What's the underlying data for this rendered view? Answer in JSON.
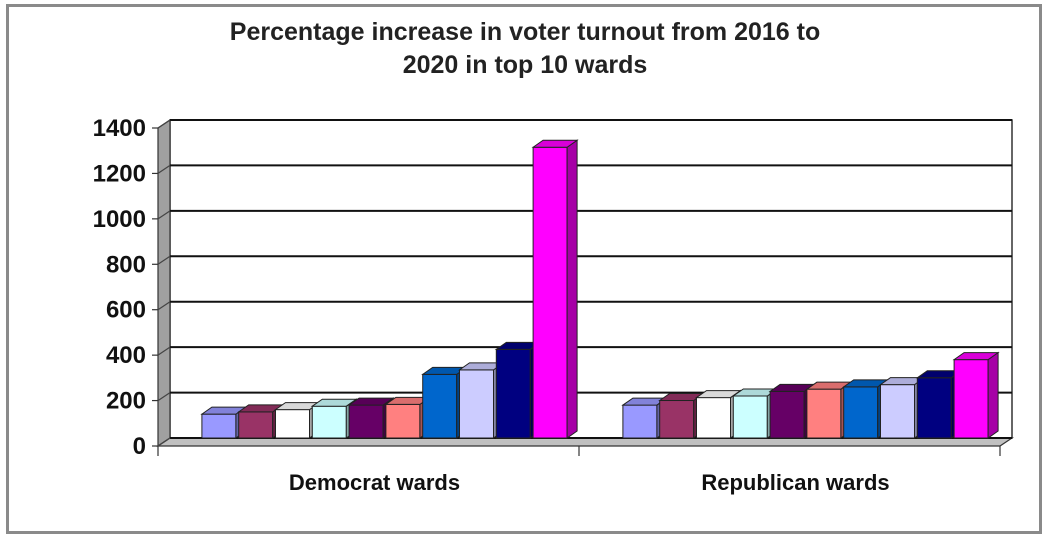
{
  "chart_data": {
    "type": "bar",
    "title_lines": [
      "Percentage increase in voter turnout from 2016 to",
      "2020 in top 10 wards"
    ],
    "title": "Percentage increase in voter turnout from 2016 to 2020 in top 10 wards",
    "xlabel": "",
    "ylabel": "",
    "ylim": [
      0,
      1400
    ],
    "yticks": [
      0,
      200,
      400,
      600,
      800,
      1000,
      1200,
      1400
    ],
    "ytick_labels": [
      "0",
      "200",
      "400",
      "600",
      "800",
      "1000",
      "1200",
      "1400"
    ],
    "grid": true,
    "legend": "none",
    "categories": [
      "Democrat wards",
      "Republican wards"
    ],
    "series": [
      {
        "values": [
          105,
          145
        ],
        "color": "#9999ff"
      },
      {
        "values": [
          115,
          165
        ],
        "color": "#993366"
      },
      {
        "values": [
          125,
          178
        ],
        "color": "#ffffff"
      },
      {
        "values": [
          140,
          185
        ],
        "color": "#ccffff"
      },
      {
        "values": [
          145,
          205
        ],
        "color": "#660066"
      },
      {
        "values": [
          148,
          215
        ],
        "color": "#ff8080"
      },
      {
        "values": [
          280,
          225
        ],
        "color": "#0066cc"
      },
      {
        "values": [
          300,
          235
        ],
        "color": "#ccccff"
      },
      {
        "values": [
          390,
          265
        ],
        "color": "#000080"
      },
      {
        "values": [
          1280,
          345
        ],
        "color": "#ff00ff"
      }
    ]
  }
}
